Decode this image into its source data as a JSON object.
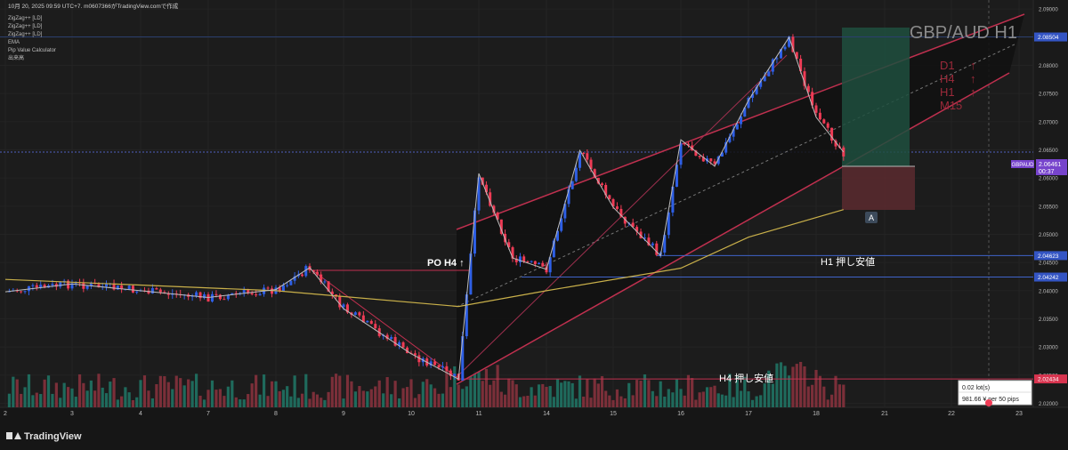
{
  "header": {
    "timestamp_line": "10月 20, 2025 09:59 UTC+7.   m0607366がTradingView.comで作成",
    "indicators": [
      "ZigZag++ [LD]",
      "ZigZag++ [LD]",
      "ZigZag++ [LD]",
      "EMA",
      "Pip Value Calculator",
      "出来高"
    ]
  },
  "watermark": "GBP/AUD H1",
  "trend_labels": [
    {
      "label": "D1",
      "arrow": "↑"
    },
    {
      "label": "H4",
      "arrow": "↑"
    },
    {
      "label": "H1",
      "arrow": "↑"
    },
    {
      "label": "M15",
      "arrow": ""
    }
  ],
  "annotations": {
    "po_h4": "PO H4 ↑",
    "h1_support": "H1 押し安値",
    "h4_support": "H4 押し安値",
    "marker_a": "A"
  },
  "pip_box": {
    "line1": "0.02 lot(s)",
    "line2": "981.66 ¥ per 50 pips"
  },
  "symbol_tag": {
    "symbol": "GBPAUD",
    "price": "2.06461",
    "countdown": "00:37"
  },
  "price_tags": [
    {
      "value": "2.08504",
      "price": 2.08504
    },
    {
      "value": "2.04623",
      "price": 2.04623
    },
    {
      "value": "2.04242",
      "price": 2.04242
    },
    {
      "value": "2.02434",
      "price": 2.02434
    }
  ],
  "footer": {
    "brand": "TradingView"
  },
  "colors": {
    "up": "#2e5fe6",
    "down": "#ef3b55",
    "ema": "#c9b04a",
    "channel": "#c0304f",
    "level": "#3f63c9",
    "profit_zone": "#1e4f3e",
    "loss_zone": "#5a2a2f",
    "vol_up": "#1f6a5c",
    "vol_down": "#7b2f39"
  },
  "chart_data": {
    "type": "candlestick",
    "symbol": "GBPAUD",
    "timeframe": "H1",
    "y_axis": {
      "ticks": [
        "2.09000",
        "2.08500",
        "2.08000",
        "2.07500",
        "2.07000",
        "2.06500",
        "2.06000",
        "2.05500",
        "2.05000",
        "2.04500",
        "2.04000",
        "2.03500",
        "2.03000",
        "2.02500",
        "2.02000"
      ],
      "range": [
        2.0193,
        2.0916
      ]
    },
    "x_axis": {
      "ticks": [
        "2",
        "3",
        "4",
        "7",
        "8",
        "9",
        "10",
        "11",
        "14",
        "15",
        "16",
        "17",
        "18",
        "21",
        "22",
        "23"
      ]
    },
    "price_path": [
      {
        "day": "2",
        "price": 2.0398
      },
      {
        "day": "3",
        "price": 2.0412
      },
      {
        "day": "4",
        "price": 2.04
      },
      {
        "day": "7",
        "price": 2.0388
      },
      {
        "day": "8",
        "price": 2.0402
      },
      {
        "day": "8.5",
        "price": 2.0441
      },
      {
        "day": "9",
        "price": 2.0368
      },
      {
        "day": "10",
        "price": 2.0288
      },
      {
        "day": "10.7",
        "price": 2.0243
      },
      {
        "day": "11",
        "price": 2.0608
      },
      {
        "day": "11.5",
        "price": 2.0458
      },
      {
        "day": "14",
        "price": 2.0438
      },
      {
        "day": "14.5",
        "price": 2.0649
      },
      {
        "day": "15",
        "price": 2.0548
      },
      {
        "day": "15.7",
        "price": 2.0462
      },
      {
        "day": "16",
        "price": 2.0668
      },
      {
        "day": "16.5",
        "price": 2.0621
      },
      {
        "day": "17",
        "price": 2.0738
      },
      {
        "day": "17.6",
        "price": 2.085
      },
      {
        "day": "18",
        "price": 2.0708
      },
      {
        "day": "18.4",
        "price": 2.0646
      }
    ],
    "ema": [
      {
        "day": "2",
        "price": 2.042
      },
      {
        "day": "8",
        "price": 2.04
      },
      {
        "day": "10.7",
        "price": 2.0372
      },
      {
        "day": "14",
        "price": 2.04
      },
      {
        "day": "16",
        "price": 2.044
      },
      {
        "day": "17",
        "price": 2.0495
      },
      {
        "day": "18.4",
        "price": 2.0544
      }
    ],
    "levels": {
      "resistance": 2.08504,
      "h1_support": 2.04623,
      "h4_support_a": 2.04242,
      "h4_support_b": 2.02434,
      "current": 2.06461
    },
    "position": {
      "entry": 2.06461,
      "take_profit": 2.09,
      "stop_loss": 2.056
    }
  }
}
